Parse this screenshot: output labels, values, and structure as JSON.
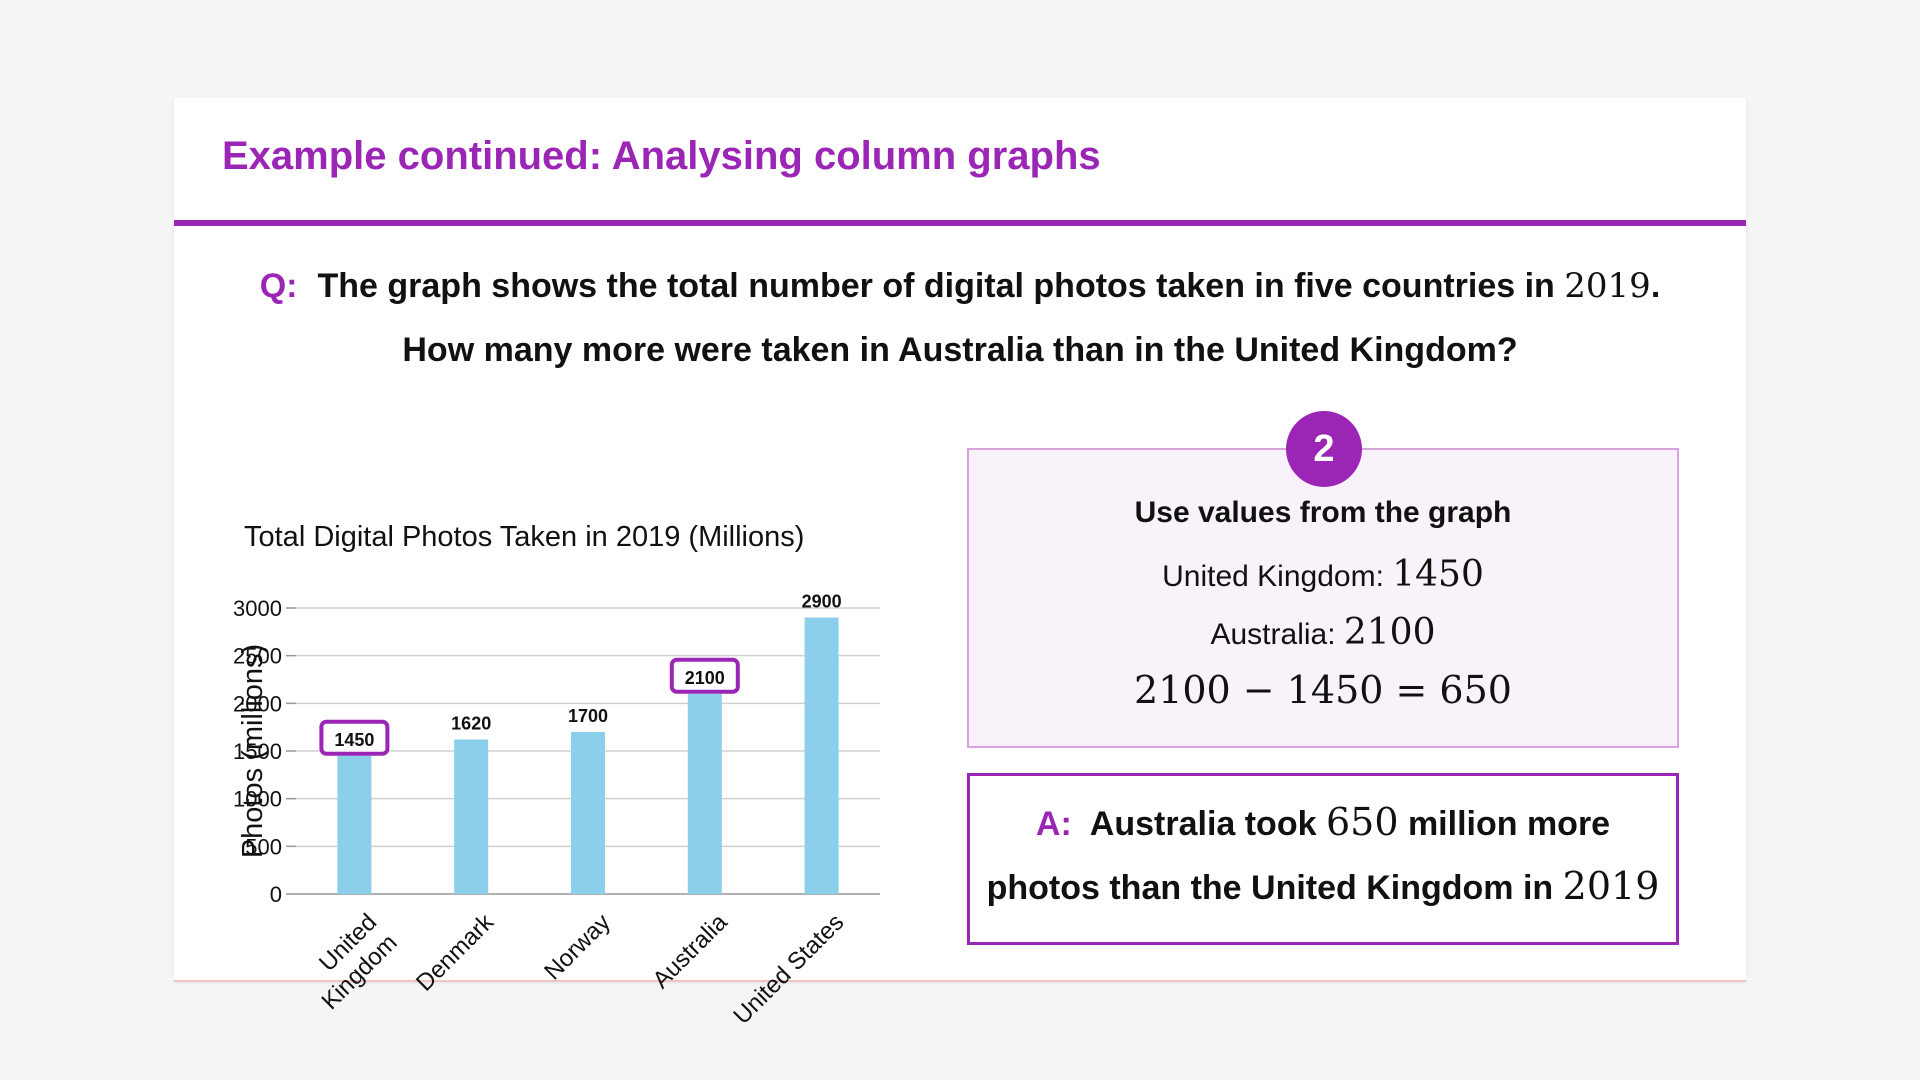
{
  "slide": {
    "title": "Example continued: Analysing column graphs"
  },
  "question": {
    "label": "Q:",
    "line1_text": "The graph shows the total number of digital photos taken in five countries in",
    "line1_year": "2019",
    "line1_end": ".",
    "line2": "How many more were taken in Australia than in the United Kingdom?"
  },
  "chart_data": {
    "type": "bar",
    "title": "Total Digital Photos Taken in 2019 (Millions)",
    "xlabel": "",
    "ylabel": "Photos (millions)",
    "categories": [
      "United Kingdom",
      "Denmark",
      "Norway",
      "Australia",
      "United States"
    ],
    "category_lines": [
      [
        "United",
        "Kingdom"
      ],
      [
        "Denmark"
      ],
      [
        "Norway"
      ],
      [
        "Australia"
      ],
      [
        "United States"
      ]
    ],
    "values": [
      1450,
      1620,
      1700,
      2100,
      2900
    ],
    "data_labels": [
      "1450",
      "1620",
      "1700",
      "2100",
      "2900"
    ],
    "highlighted": [
      true,
      false,
      false,
      true,
      false
    ],
    "ylim": [
      0,
      3000
    ],
    "yticks": [
      0,
      500,
      1000,
      1500,
      2000,
      2500,
      3000
    ],
    "grid": true,
    "bar_color": "#8ccfeb",
    "highlight_color": "#9b26b6"
  },
  "step": {
    "number": "2",
    "heading": "Use values from the graph",
    "uk_label": "United Kingdom: ",
    "uk_value": "1450",
    "au_label": "Australia: ",
    "au_value": "2100",
    "equation": "2100 − 1450 = 650"
  },
  "answer": {
    "label": "A:",
    "line1_start": "Australia took",
    "line1_value": "650",
    "line1_end": "million more",
    "line2_text": "photos than the United Kingdom in",
    "line2_year": "2019"
  },
  "colors": {
    "accent": "#9b26b6",
    "bar": "#8ccfeb",
    "step_bg": "#f9f2fa",
    "step_border": "#d7a4e0"
  }
}
